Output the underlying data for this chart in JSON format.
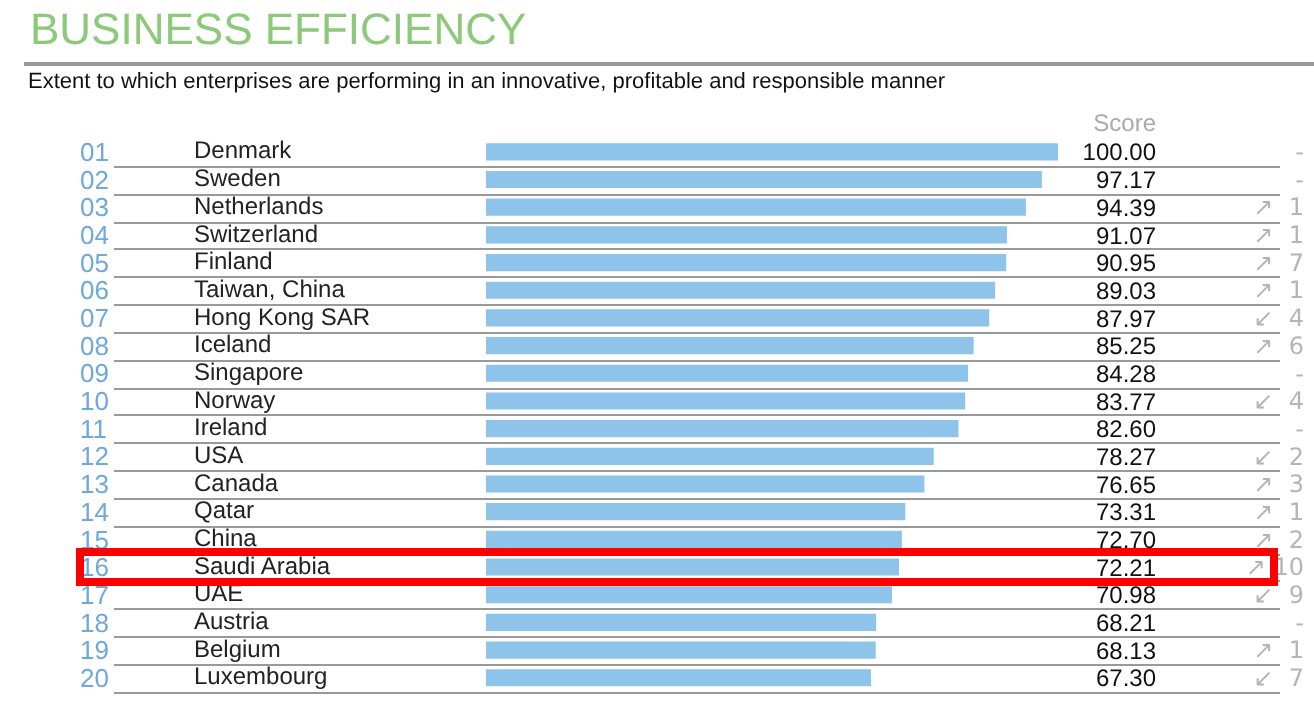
{
  "chart_data": {
    "type": "bar",
    "orientation": "horizontal",
    "title": "BUSINESS EFFICIENCY",
    "subtitle": "Extent to which enterprises are performing in an innovative, profitable and responsible manner",
    "categories": [
      "Denmark",
      "Sweden",
      "Netherlands",
      "Switzerland",
      "Finland",
      "Taiwan, China",
      "Hong Kong SAR",
      "Iceland",
      "Singapore",
      "Norway",
      "Ireland",
      "USA",
      "Canada",
      "Qatar",
      "China",
      "Saudi Arabia",
      "UAE",
      "Austria",
      "Belgium",
      "Luxembourg"
    ],
    "values": [
      100,
      97.17,
      94.39,
      91.07,
      90.95,
      89.03,
      87.97,
      85.25,
      84.28,
      83.77,
      82.6,
      78.27,
      76.65,
      73.31,
      72.7,
      72.21,
      70.98,
      68.21,
      68.13,
      67.3
    ],
    "value_labels": [
      "100.00",
      "97.17",
      "94.39",
      "91.07",
      "90.95",
      "89.03",
      "87.97",
      "85.25",
      "84.28",
      "83.77",
      "82.60",
      "78.27",
      "76.65",
      "73.31",
      "72.70",
      "72.21",
      "70.98",
      "68.21",
      "68.13",
      "67.30"
    ],
    "color": "#8ec3ea",
    "annotations": [
      "Score",
      "01",
      "02",
      "03",
      "04",
      "05",
      "06",
      "07",
      "08",
      "09",
      "10",
      "11",
      "12",
      "13",
      "14",
      "15",
      "16",
      "17",
      "18",
      "19",
      "20",
      "-",
      "-",
      "↗  1",
      "↗  1",
      "↗  7",
      "↗  1",
      "↙  4",
      "↗  6",
      "-",
      "↙  4",
      "-",
      "↙  2",
      "↗  3",
      "↗  1",
      "↗  2",
      "↗ 10",
      "↙  9",
      "-",
      "↗  1",
      "↙  7"
    ]
  }
}
